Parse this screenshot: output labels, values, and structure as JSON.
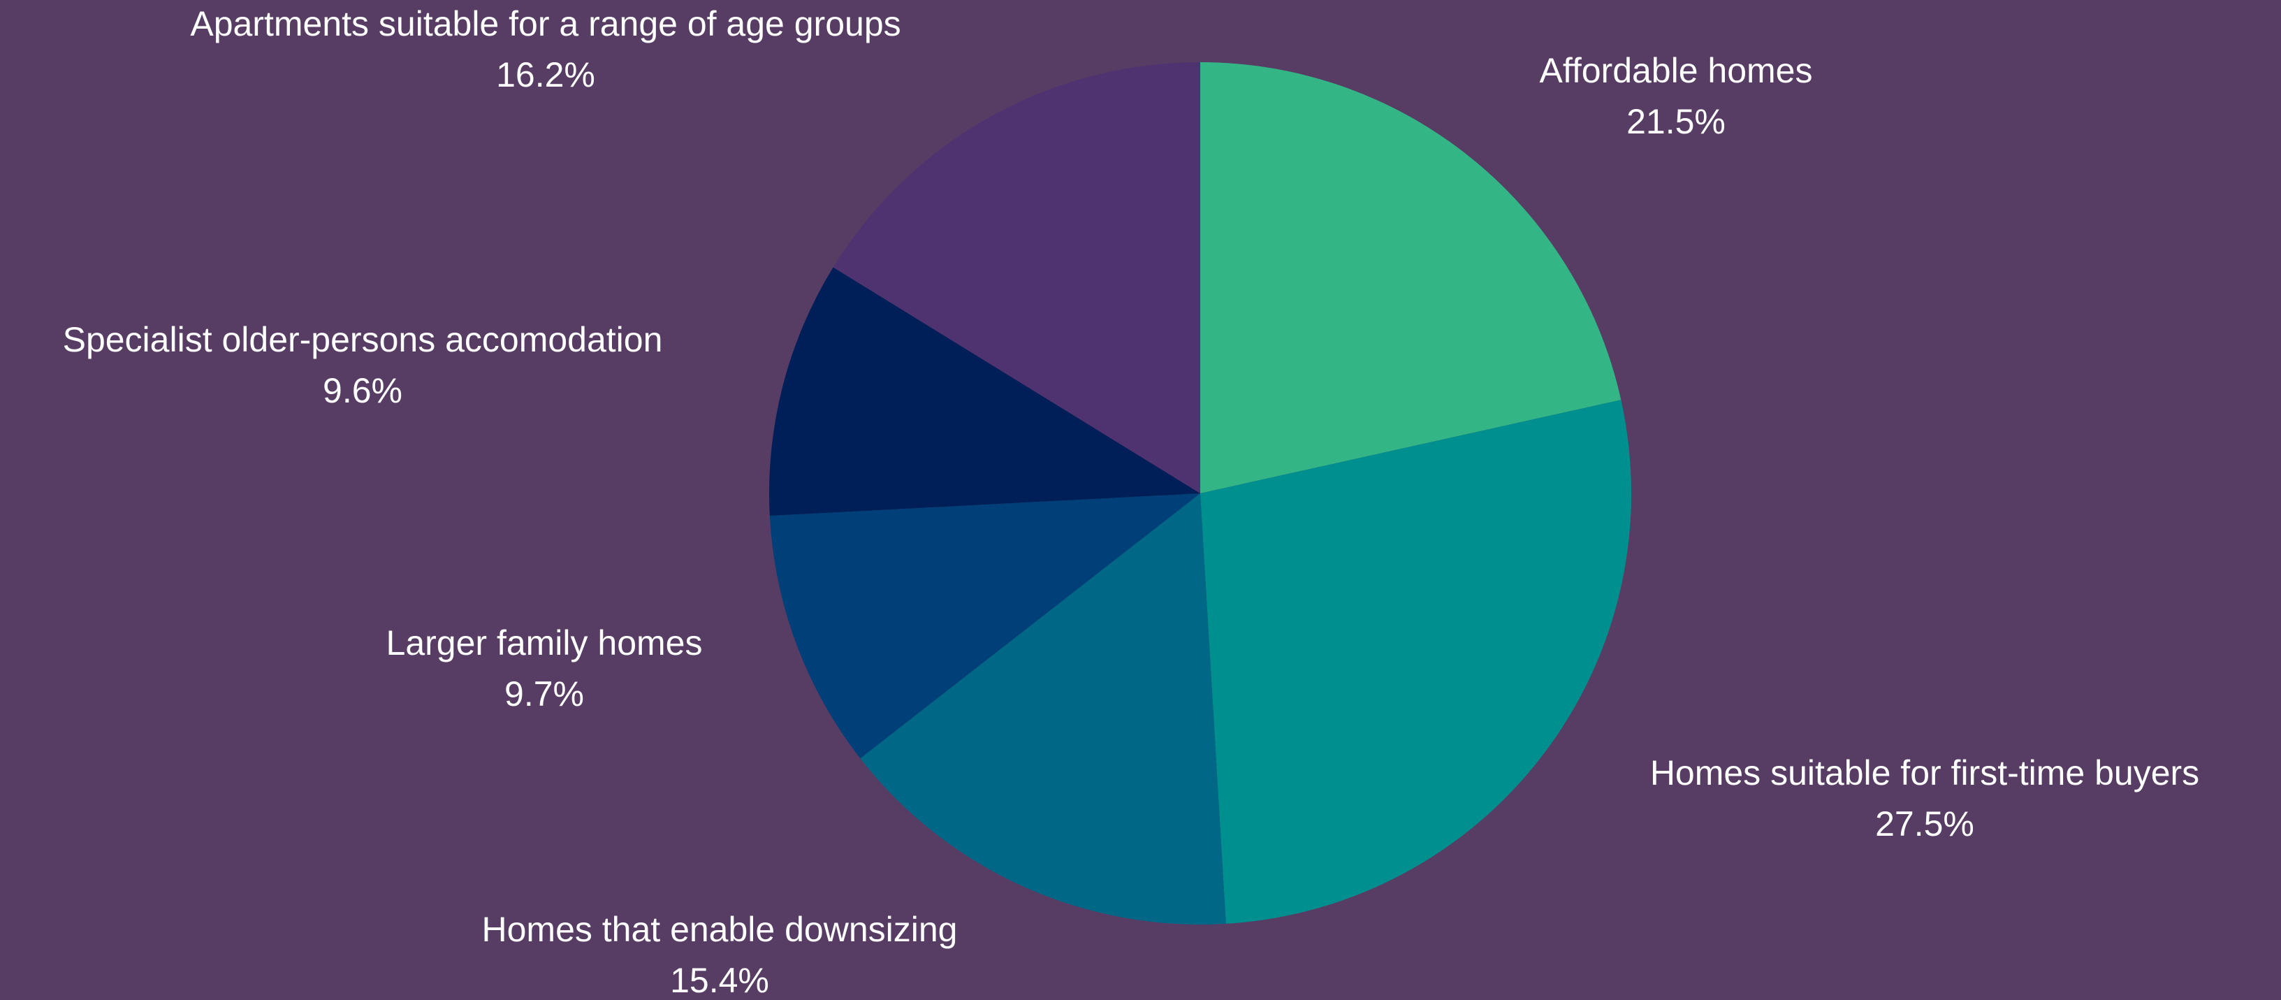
{
  "background_color": "#573c63",
  "chart_data": {
    "type": "pie",
    "title": "",
    "start": "12 o'clock",
    "direction": "clockwise",
    "legend": "none",
    "slices": [
      {
        "label": "Affordable homes",
        "value": 21.5,
        "value_label": "21.5%",
        "color": "#34b586"
      },
      {
        "label": "Homes suitable for first-time buyers",
        "value": 27.5,
        "value_label": "27.5%",
        "color": "#008f8f"
      },
      {
        "label": "Homes that enable downsizing",
        "value": 15.4,
        "value_label": "15.4%",
        "color": "#006886"
      },
      {
        "label": "Larger family homes",
        "value": 9.7,
        "value_label": "9.7%",
        "color": "#003f78"
      },
      {
        "label": "Specialist older-persons accomodation",
        "value": 9.6,
        "value_label": "9.6%",
        "color": "#001e57"
      },
      {
        "label": "Apartments suitable for a range of age groups",
        "value": 16.2,
        "value_label": "16.2%",
        "color": "#4f3370"
      }
    ]
  }
}
